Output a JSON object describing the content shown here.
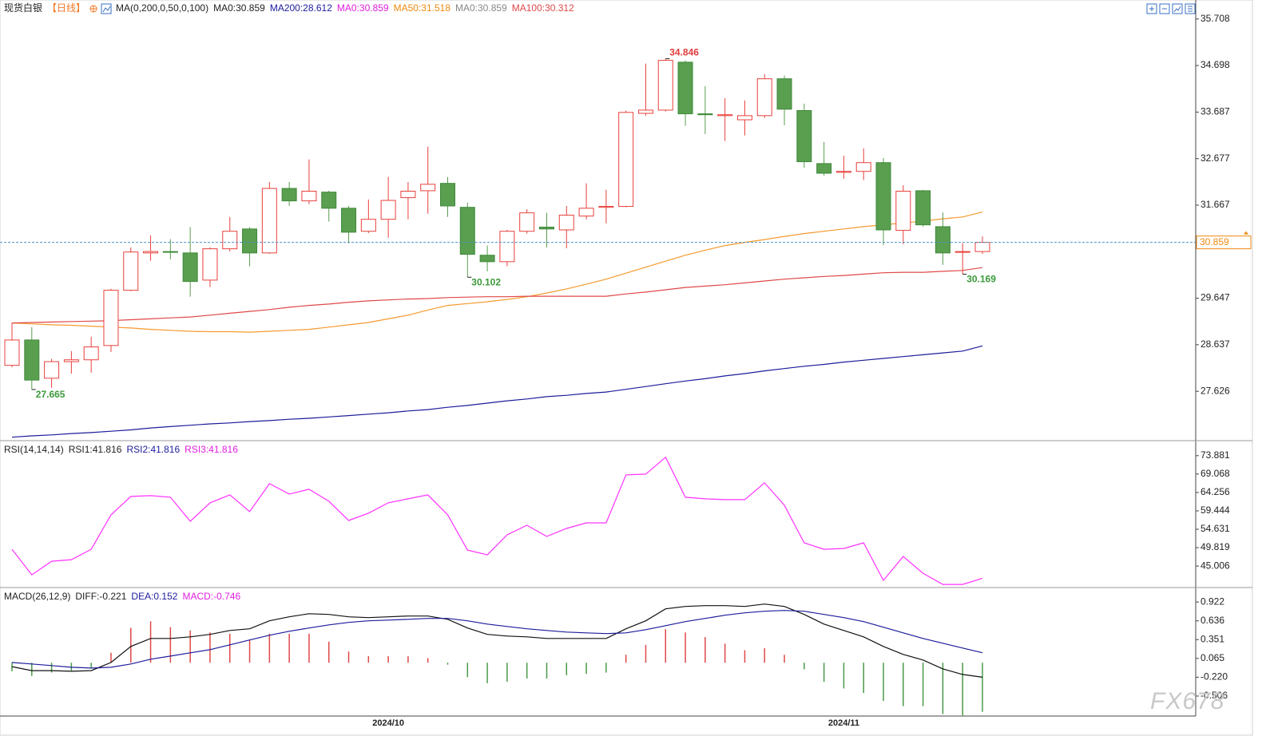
{
  "chart_data": [
    {
      "type": "candlestick",
      "title": "现货白银",
      "period": "【日线】",
      "period_color": "#f07828",
      "legend": [
        {
          "text": "MA(0,200,0,50,0,100)",
          "color": "#222222"
        },
        {
          "text": "MA0:30.859",
          "color": "#222222"
        },
        {
          "text": "MA200:28.612",
          "color": "#1c1c9c"
        },
        {
          "text": "MA0:30.859",
          "color": "#e020e0"
        },
        {
          "text": "MA50:31.518",
          "color": "#f08a10"
        },
        {
          "text": "MA0:30.859",
          "color": "#888888"
        },
        {
          "text": "MA100:30.312",
          "color": "#e04848"
        }
      ],
      "up_color": "#e8413c",
      "down_color": "#5a9e50",
      "candles": {
        "open": [
          28.19,
          28.74,
          27.91,
          28.27,
          28.31,
          28.62,
          29.82,
          30.63,
          30.66,
          30.63,
          30.04,
          30.72,
          31.15,
          30.63,
          32.03,
          31.76,
          31.95,
          31.6,
          31.1,
          31.36,
          31.83,
          31.98,
          32.14,
          31.62,
          30.58,
          30.44,
          31.1,
          31.19,
          31.13,
          31.43,
          31.62,
          31.64,
          33.66,
          33.73,
          34.77,
          33.65,
          33.61,
          33.52,
          33.61,
          34.41,
          33.72,
          32.57,
          32.38,
          32.4,
          32.59,
          31.12,
          31.98,
          31.2,
          30.65,
          30.66
        ],
        "high": [
          29.11,
          29.02,
          28.33,
          28.5,
          28.81,
          29.85,
          30.75,
          31.01,
          30.93,
          31.19,
          30.75,
          31.41,
          31.19,
          32.17,
          32.17,
          32.66,
          31.98,
          31.65,
          31.79,
          32.28,
          32.17,
          32.94,
          32.28,
          31.72,
          30.79,
          31.13,
          31.58,
          31.5,
          31.65,
          32.14,
          32.0,
          33.72,
          34.74,
          34.846,
          34.81,
          34.25,
          33.99,
          33.94,
          34.51,
          34.48,
          33.87,
          33.04,
          32.74,
          32.9,
          32.69,
          32.1,
          32.0,
          31.51,
          30.84,
          30.99
        ],
        "low": [
          28.15,
          27.665,
          27.7,
          28.01,
          28.03,
          28.48,
          29.8,
          30.46,
          30.49,
          29.68,
          29.89,
          30.66,
          30.34,
          30.61,
          31.65,
          31.69,
          31.31,
          30.84,
          31.06,
          30.96,
          31.36,
          31.48,
          31.41,
          30.102,
          30.23,
          30.34,
          31.05,
          30.75,
          30.73,
          31.36,
          31.27,
          31.62,
          33.61,
          33.7,
          33.39,
          33.21,
          33.06,
          33.18,
          33.56,
          33.4,
          32.48,
          32.31,
          32.24,
          32.21,
          30.8,
          30.82,
          31.2,
          30.37,
          30.169,
          30.61
        ],
        "close": [
          28.74,
          27.87,
          28.27,
          28.31,
          28.59,
          29.82,
          30.65,
          30.66,
          30.65,
          30.01,
          30.72,
          31.1,
          30.63,
          32.03,
          31.76,
          31.97,
          31.6,
          31.08,
          31.36,
          31.77,
          31.97,
          32.12,
          31.65,
          30.6,
          30.44,
          31.1,
          31.5,
          31.15,
          31.45,
          31.6,
          31.64,
          33.68,
          33.73,
          34.81,
          33.65,
          33.63,
          33.63,
          33.61,
          34.41,
          33.75,
          32.61,
          32.36,
          32.4,
          32.59,
          31.13,
          31.97,
          31.24,
          30.63,
          30.66,
          30.859
        ]
      },
      "series": [
        {
          "color": "#1c1c9c",
          "values": [
            26.63,
            26.66,
            26.68,
            26.71,
            26.73,
            26.76,
            26.79,
            26.83,
            26.86,
            26.89,
            26.92,
            26.94,
            26.97,
            26.99,
            27.02,
            27.04,
            27.07,
            27.1,
            27.13,
            27.16,
            27.2,
            27.23,
            27.28,
            27.32,
            27.37,
            27.42,
            27.46,
            27.51,
            27.54,
            27.58,
            27.61,
            27.67,
            27.73,
            27.79,
            27.85,
            27.9,
            27.96,
            28.01,
            28.07,
            28.12,
            28.17,
            28.21,
            28.26,
            28.3,
            28.34,
            28.38,
            28.42,
            28.46,
            28.5,
            28.612
          ]
        },
        {
          "color": "#f59a2e",
          "values": [
            29.11,
            29.09,
            29.07,
            29.06,
            29.04,
            29.02,
            29.0,
            28.97,
            28.95,
            28.93,
            28.92,
            28.92,
            28.91,
            28.93,
            28.95,
            28.97,
            29.02,
            29.07,
            29.12,
            29.2,
            29.28,
            29.39,
            29.49,
            29.53,
            29.57,
            29.62,
            29.68,
            29.76,
            29.85,
            29.95,
            30.06,
            30.19,
            30.32,
            30.45,
            30.58,
            30.69,
            30.79,
            30.86,
            30.92,
            30.99,
            31.05,
            31.1,
            31.15,
            31.2,
            31.24,
            31.28,
            31.32,
            31.37,
            31.41,
            31.518
          ]
        },
        {
          "color": "#e04848",
          "values": [
            29.11,
            29.12,
            29.13,
            29.14,
            29.15,
            29.16,
            29.18,
            29.2,
            29.22,
            29.24,
            29.28,
            29.32,
            29.36,
            29.4,
            29.45,
            29.49,
            29.52,
            29.56,
            29.59,
            29.61,
            29.63,
            29.64,
            29.66,
            29.67,
            29.68,
            29.68,
            29.69,
            29.69,
            29.69,
            29.69,
            29.69,
            29.74,
            29.78,
            29.83,
            29.88,
            29.91,
            29.94,
            29.98,
            30.02,
            30.06,
            30.09,
            30.12,
            30.14,
            30.17,
            30.2,
            30.21,
            30.21,
            30.23,
            30.25,
            30.312
          ]
        }
      ],
      "annotations": [
        {
          "text": "34.846",
          "candle": 33,
          "anchor": "high",
          "color": "#e03c3c"
        },
        {
          "text": "27.665",
          "candle": 1,
          "anchor": "low",
          "color": "#3c9a3c"
        },
        {
          "text": "30.102",
          "candle": 23,
          "anchor": "low",
          "color": "#3c9a3c"
        },
        {
          "text": "30.169",
          "candle": 48,
          "anchor": "low",
          "color": "#3c9a3c"
        }
      ],
      "last_price_marker": true,
      "last_price_color": "#f08a10",
      "last_price_line_color": "#4a90c8",
      "ylim": [
        26.59,
        36.12
      ],
      "yticks": [
        35.708,
        34.698,
        33.687,
        32.677,
        31.667,
        29.647,
        28.637,
        27.626
      ]
    },
    {
      "type": "line",
      "title": "RSI(14,14,14)",
      "legend": [
        {
          "text": "RSI1:41.816",
          "color": "#222222"
        },
        {
          "text": "RSI2:41.816",
          "color": "#1c1c9c"
        },
        {
          "text": "RSI3:41.816",
          "color": "#e020e0"
        }
      ],
      "series": [
        {
          "color": "#ff30ff",
          "values": [
            49.4,
            42.71,
            46.27,
            46.68,
            49.4,
            58.4,
            63.21,
            63.42,
            63.0,
            56.73,
            61.54,
            63.63,
            59.24,
            66.56,
            63.84,
            65.09,
            61.96,
            56.93,
            58.82,
            61.54,
            62.58,
            63.63,
            58.4,
            49.19,
            47.94,
            53.17,
            55.68,
            52.75,
            54.84,
            56.31,
            56.31,
            68.86,
            69.07,
            73.46,
            63.0,
            62.58,
            62.37,
            62.37,
            66.77,
            60.91,
            51.08,
            49.4,
            49.61,
            51.08,
            41.24,
            47.52,
            43.13,
            40.2,
            40.2,
            41.816
          ]
        }
      ],
      "ylim": [
        39.6,
        77.6
      ],
      "yticks": [
        73.881,
        69.068,
        64.256,
        59.444,
        54.631,
        49.819,
        45.006
      ]
    },
    {
      "type": "macd",
      "title": "MACD(26,12,9)",
      "legend": [
        {
          "text": "DIFF:-0.221",
          "color": "#222222"
        },
        {
          "text": "DEA:0.152",
          "color": "#1c1c9c"
        },
        {
          "text": "MACD:-0.746",
          "color": "#e020e0"
        }
      ],
      "series": [
        {
          "color": "#111111",
          "values": [
            -0.06,
            -0.12,
            -0.12,
            -0.13,
            -0.12,
            0.004,
            0.247,
            0.369,
            0.369,
            0.393,
            0.43,
            0.49,
            0.515,
            0.636,
            0.697,
            0.745,
            0.733,
            0.697,
            0.685,
            0.697,
            0.709,
            0.709,
            0.66,
            0.527,
            0.43,
            0.405,
            0.393,
            0.369,
            0.369,
            0.369,
            0.369,
            0.515,
            0.636,
            0.818,
            0.855,
            0.867,
            0.867,
            0.855,
            0.891,
            0.855,
            0.733,
            0.587,
            0.49,
            0.393,
            0.247,
            0.126,
            0.041,
            -0.093,
            -0.178,
            -0.221
          ]
        },
        {
          "color": "#1c1c9c",
          "values": [
            0.004,
            -0.02,
            -0.044,
            -0.069,
            -0.081,
            -0.069,
            -0.02,
            0.053,
            0.101,
            0.15,
            0.199,
            0.272,
            0.345,
            0.417,
            0.478,
            0.527,
            0.575,
            0.612,
            0.636,
            0.648,
            0.66,
            0.673,
            0.673,
            0.636,
            0.587,
            0.551,
            0.515,
            0.49,
            0.466,
            0.454,
            0.442,
            0.454,
            0.502,
            0.563,
            0.624,
            0.673,
            0.721,
            0.758,
            0.782,
            0.794,
            0.782,
            0.733,
            0.685,
            0.624,
            0.539,
            0.454,
            0.369,
            0.296,
            0.223,
            0.152
          ]
        }
      ],
      "histogram": {
        "up_color": "#e04848",
        "down_color": "#4a9a4a",
        "values": [
          -0.13,
          -0.2,
          -0.15,
          -0.12,
          -0.08,
          0.15,
          0.53,
          0.63,
          0.54,
          0.49,
          0.46,
          0.44,
          0.34,
          0.44,
          0.44,
          0.44,
          0.32,
          0.17,
          0.1,
          0.1,
          0.1,
          0.07,
          -0.03,
          -0.22,
          -0.31,
          -0.29,
          -0.24,
          -0.24,
          -0.19,
          -0.17,
          -0.15,
          0.12,
          0.27,
          0.51,
          0.46,
          0.39,
          0.29,
          0.19,
          0.22,
          0.12,
          -0.1,
          -0.29,
          -0.39,
          -0.46,
          -0.58,
          -0.66,
          -0.66,
          -0.78,
          -0.8,
          -0.746
        ]
      },
      "categories": [
        null,
        null,
        null,
        null,
        null,
        null,
        null,
        null,
        null,
        null,
        null,
        null,
        null,
        null,
        null,
        null,
        null,
        null,
        null,
        "2024/10",
        null,
        null,
        null,
        null,
        null,
        null,
        null,
        null,
        null,
        null,
        null,
        null,
        null,
        null,
        null,
        null,
        null,
        null,
        null,
        null,
        null,
        null,
        "2024/11",
        null,
        null,
        null,
        null,
        null,
        null,
        null
      ],
      "ylim": [
        -0.81,
        1.13
      ],
      "yticks": [
        0.922,
        0.636,
        0.351,
        0.065,
        {
          "value": -0.22,
          "label": "-0.220"
        },
        {
          "value": -0.506,
          "label": "-0.506"
        }
      ]
    }
  ],
  "watermark": "FX678"
}
